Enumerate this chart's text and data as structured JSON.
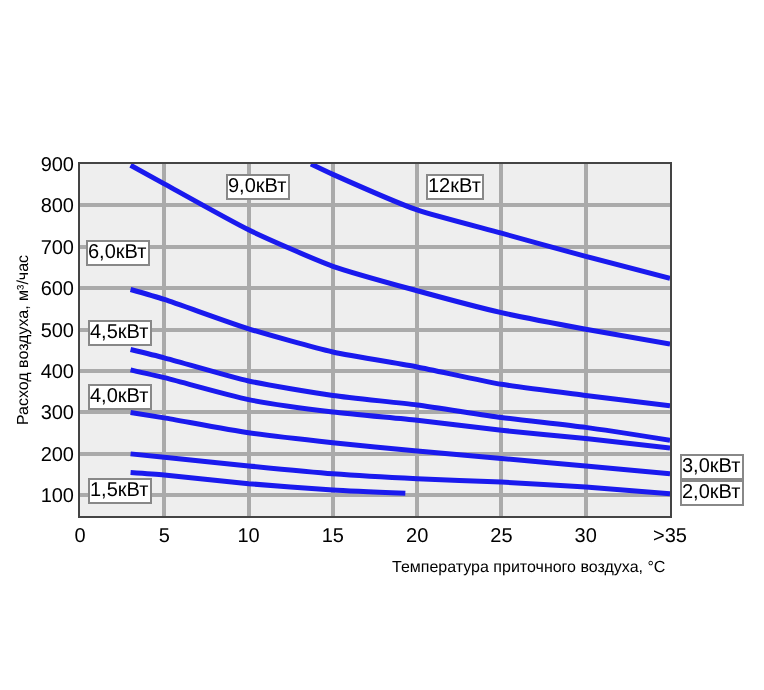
{
  "chart_data": {
    "type": "line",
    "xlabel": "Температура приточного воздуха, °С",
    "ylabel": "Расход воздуха, м³/час",
    "xlim": [
      0,
      35
    ],
    "ylim": [
      50,
      900
    ],
    "xticks": [
      0,
      5,
      10,
      15,
      20,
      25,
      30,
      {
        "value": 35,
        "label": ">35"
      }
    ],
    "yticks": [
      100,
      200,
      300,
      400,
      500,
      600,
      700,
      800,
      900
    ],
    "grid": true,
    "legend": false,
    "series": [
      {
        "name": "12кВт",
        "color": "#1a1aee",
        "x": [
          13.7,
          15,
          20,
          25,
          30,
          35
        ],
        "values": [
          900,
          875,
          789,
          733,
          677,
          624
        ]
      },
      {
        "name": "9,0кВт",
        "color": "#1a1aee",
        "x": [
          3,
          5,
          10,
          15,
          20,
          25,
          30,
          35
        ],
        "values": [
          897,
          852,
          741,
          653,
          594,
          541,
          501,
          465
        ]
      },
      {
        "name": "6,0кВт",
        "color": "#1a1aee",
        "x": [
          3,
          5,
          10,
          15,
          20,
          25,
          30,
          35
        ],
        "values": [
          597,
          573,
          502,
          446,
          410,
          368,
          341,
          316
        ]
      },
      {
        "name": "4,5кВт",
        "color": "#1a1aee",
        "x": [
          3,
          5,
          10,
          15,
          20,
          25,
          30,
          35
        ],
        "values": [
          452,
          432,
          376,
          341,
          318,
          288,
          264,
          233
        ]
      },
      {
        "name": "4,0кВт",
        "color": "#1a1aee",
        "x": [
          3,
          5,
          10,
          15,
          20,
          25,
          30,
          35
        ],
        "values": [
          403,
          384,
          331,
          301,
          281,
          257,
          237,
          214
        ]
      },
      {
        "name": "3,0кВт",
        "color": "#1a1aee",
        "x": [
          3,
          5,
          10,
          15,
          20,
          25,
          30,
          35
        ],
        "values": [
          300,
          287,
          251,
          227,
          207,
          189,
          171,
          152
        ]
      },
      {
        "name": "2,0кВт",
        "color": "#1a1aee",
        "x": [
          3,
          5,
          10,
          15,
          20,
          25,
          30,
          35
        ],
        "values": [
          200,
          192,
          171,
          152,
          140,
          132,
          120,
          104
        ]
      },
      {
        "name": "1,5кВт",
        "color": "#1a1aee",
        "x": [
          3,
          5,
          10,
          15,
          19.3
        ],
        "values": [
          155,
          149,
          128,
          113,
          105
        ]
      }
    ]
  }
}
